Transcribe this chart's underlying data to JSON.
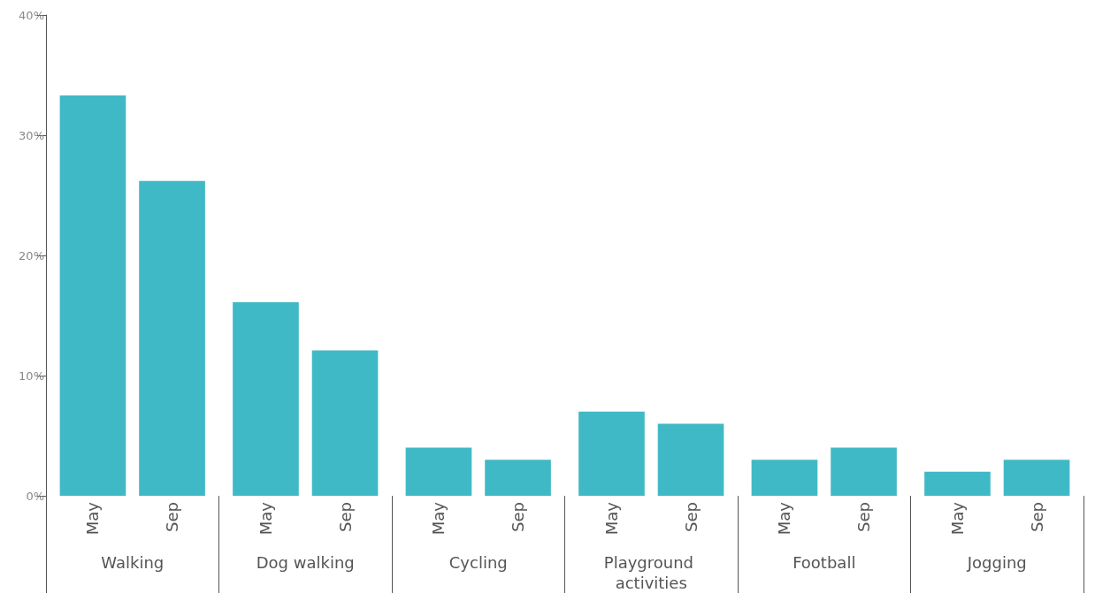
{
  "chart_data": {
    "type": "bar",
    "categories": [
      "Walking",
      "Dog walking",
      "Cycling",
      "Playground activities",
      "Football",
      "Jogging"
    ],
    "series": [
      {
        "name": "May",
        "color": "#40b9c6",
        "values": [
          33.3,
          16.1,
          4.0,
          7.0,
          3.0,
          2.0
        ]
      },
      {
        "name": "Sep",
        "color": "#40b9c6",
        "values": [
          26.2,
          12.1,
          3.0,
          6.0,
          4.0,
          3.0
        ]
      }
    ],
    "ylim": [
      0,
      40
    ],
    "yticks": [
      {
        "value": 0,
        "label": "0%"
      },
      {
        "value": 10,
        "label": "10%"
      },
      {
        "value": 20,
        "label": "20%"
      },
      {
        "value": 30,
        "label": "30%"
      },
      {
        "value": 40,
        "label": "40%"
      }
    ],
    "grid": false,
    "legend": false
  }
}
